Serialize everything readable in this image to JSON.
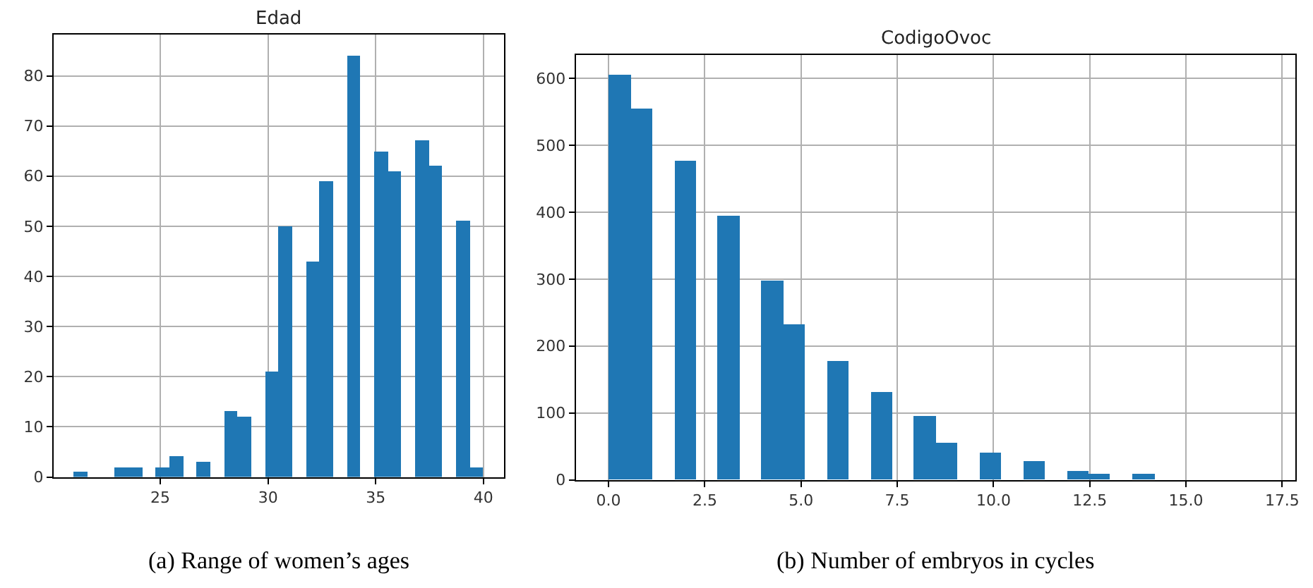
{
  "chart_data": [
    {
      "type": "histogram",
      "title": "Edad",
      "color": "#1f77b4",
      "bins": [
        21,
        21.63,
        22.27,
        22.9,
        23.53,
        24.17,
        24.8,
        25.43,
        26.07,
        26.7,
        27.33,
        27.97,
        28.6,
        29.23,
        29.87,
        30.5,
        31.13,
        31.77,
        32.4,
        33.03,
        33.67,
        34.3,
        34.93,
        35.57,
        36.2,
        36.83,
        37.47,
        38.1,
        38.73,
        39.37,
        40
      ],
      "values": [
        1,
        0,
        0,
        2,
        2,
        0,
        2,
        4,
        0,
        3,
        0,
        13,
        12,
        0,
        21,
        50,
        0,
        43,
        59,
        0,
        84,
        0,
        65,
        61,
        0,
        67,
        62,
        0,
        51,
        2
      ],
      "xlim": [
        20.05,
        40.95
      ],
      "xticks": [
        25,
        30,
        35,
        40
      ],
      "ylim": [
        0,
        88.2
      ],
      "yticks": [
        0,
        10,
        20,
        30,
        40,
        50,
        60,
        70,
        80
      ],
      "grid": true,
      "annotations": [
        "(a) Range of women’s ages"
      ]
    },
    {
      "type": "histogram",
      "title": "CodigoOvoc",
      "color": "#1f77b4",
      "bins": [
        0,
        0.57,
        1.13,
        1.7,
        2.27,
        2.83,
        3.4,
        3.97,
        4.53,
        5.1,
        5.67,
        6.23,
        6.8,
        7.37,
        7.93,
        8.5,
        9.07,
        9.63,
        10.2,
        10.77,
        11.33,
        11.9,
        12.47,
        13.03,
        13.6,
        14.17
      ],
      "values": [
        605,
        555,
        0,
        476,
        0,
        395,
        0,
        298,
        232,
        0,
        178,
        0,
        132,
        0,
        95,
        56,
        0,
        40,
        0,
        28,
        0,
        14,
        9,
        0,
        9
      ],
      "xlim": [
        -0.85,
        17.85
      ],
      "xticks": [
        {
          "value": 0,
          "label": "0.0"
        },
        2.5,
        {
          "value": 5,
          "label": "5.0"
        },
        7.5,
        {
          "value": 10,
          "label": "10.0"
        },
        12.5,
        {
          "value": 15,
          "label": "15.0"
        },
        17.5
      ],
      "ylim": [
        0,
        635
      ],
      "yticks": [
        0,
        100,
        200,
        300,
        400,
        500,
        600
      ],
      "grid": true,
      "annotations": [
        "(b) Number of embryos in cycles"
      ]
    }
  ]
}
